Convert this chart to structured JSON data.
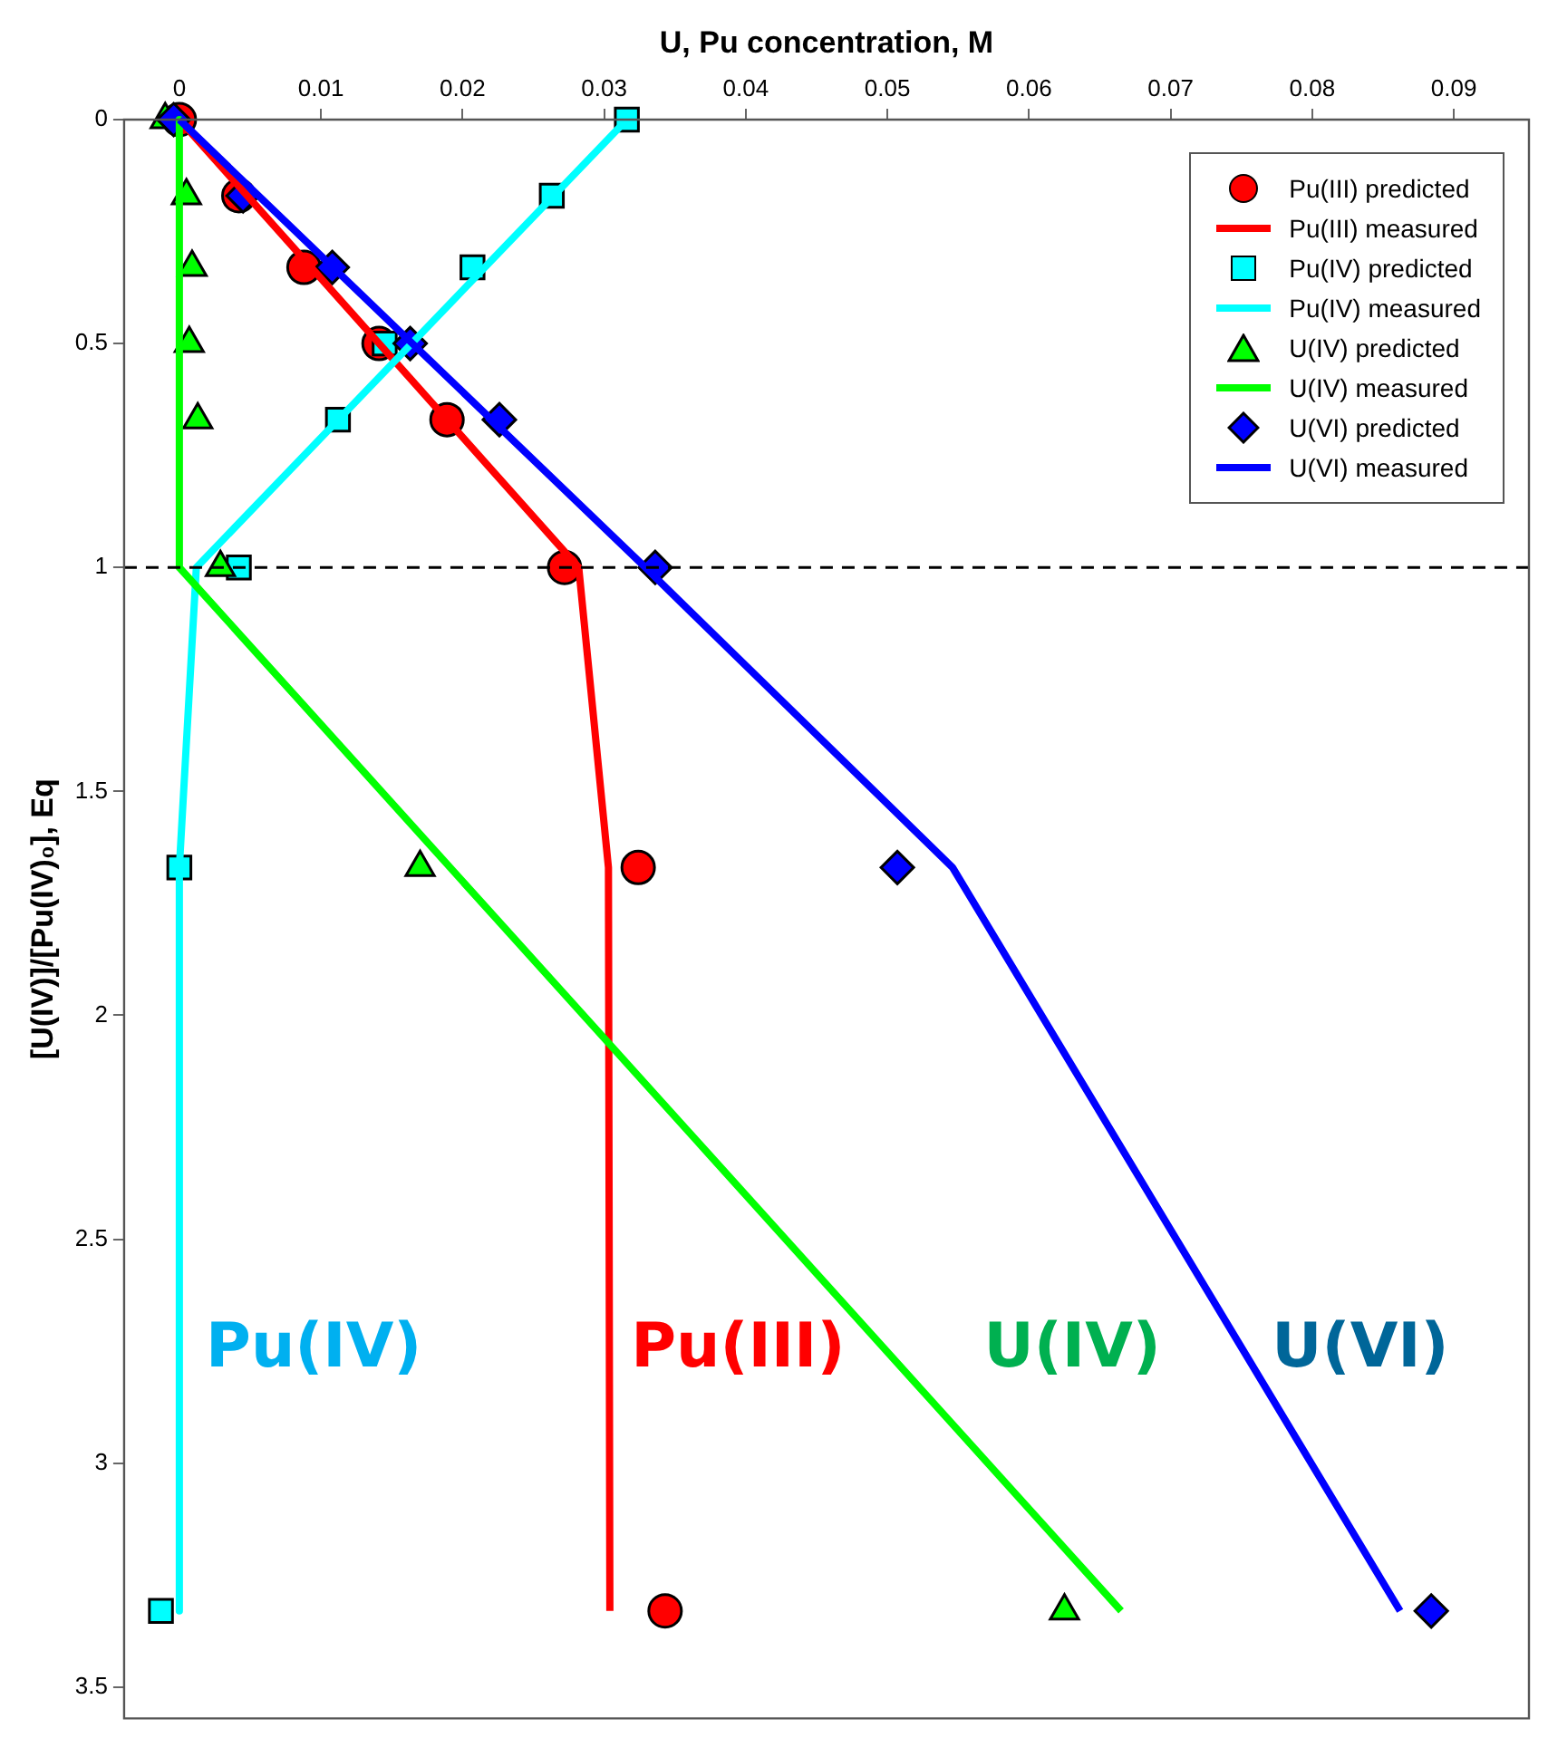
{
  "chart_data": {
    "type": "scatter",
    "xlabel": "U, Pu concentration, M",
    "ylabel": "[U(IV)]/[Pu(IV)₀], Eq",
    "xlim": [
      -0.0039,
      0.0953
    ],
    "xticks": [
      0,
      0.01,
      0.02,
      0.03,
      0.04,
      0.05,
      0.06,
      0.07,
      0.08,
      0.09
    ],
    "ylim": [
      3.57,
      0
    ],
    "yticks": [
      0,
      0.5,
      1,
      1.5,
      2,
      2.5,
      3,
      3.5
    ],
    "grid": false,
    "legend": "top right",
    "series": [
      {
        "name": "Pu(III) predicted",
        "type": "scatter",
        "marker": "circle",
        "color": "#ff0000",
        "x": [
          0,
          0.0042,
          0.0088,
          0.0141,
          0.0189,
          0.0272,
          0.0324,
          0.0343
        ],
        "values": [
          0,
          0.17,
          0.33,
          0.5,
          0.67,
          1,
          1.67,
          3.33
        ]
      },
      {
        "name": "Pu(III) measured",
        "type": "line",
        "marker": "none",
        "color": "#ff0000",
        "x": [
          0,
          0.0282,
          0.0303,
          0.0304
        ],
        "values": [
          0,
          1,
          1.67,
          3.33
        ]
      },
      {
        "name": "Pu(IV) predicted",
        "type": "scatter",
        "marker": "square",
        "color": "#00ffff",
        "x": [
          0.0316,
          0.0263,
          0.0207,
          0.0145,
          0.0112,
          0.0042,
          0,
          -0.0013
        ],
        "values": [
          0,
          0.17,
          0.33,
          0.5,
          0.67,
          1,
          1.67,
          3.33
        ]
      },
      {
        "name": "Pu(IV) measured",
        "type": "line",
        "marker": "none",
        "color": "#00ffff",
        "x": [
          0.0316,
          0.0012,
          0,
          0
        ],
        "values": [
          0,
          1,
          1.67,
          3.33
        ]
      },
      {
        "name": "U(IV) predicted",
        "type": "scatter",
        "marker": "triangle",
        "color": "#00ff00",
        "x": [
          -0.001,
          0.0005,
          0.0009,
          0.0007,
          0.0013,
          0.0029,
          0.017,
          0.0625
        ],
        "values": [
          0,
          0.17,
          0.33,
          0.5,
          0.67,
          1,
          1.67,
          3.33
        ]
      },
      {
        "name": "U(IV) measured",
        "type": "line",
        "marker": "none",
        "color": "#00ff00",
        "x": [
          0,
          0,
          0.0665
        ],
        "values": [
          0,
          1,
          3.33
        ]
      },
      {
        "name": "U(VI) predicted",
        "type": "scatter",
        "marker": "diamond",
        "color": "#0000ff",
        "x": [
          -0.0004,
          0.0045,
          0.0108,
          0.0163,
          0.0226,
          0.0336,
          0.0507,
          0.0884
        ],
        "values": [
          0,
          0.17,
          0.33,
          0.5,
          0.67,
          1,
          1.67,
          3.33
        ]
      },
      {
        "name": "U(VI) measured",
        "type": "line",
        "marker": "none",
        "color": "#0000ff",
        "x": [
          0,
          0.0329,
          0.0546,
          0.0862
        ],
        "values": [
          0,
          1,
          1.67,
          3.33
        ]
      }
    ],
    "ref_lines": [
      {
        "axis": "y",
        "value": 1,
        "color": "#000000",
        "line_style": "dashed"
      }
    ],
    "annotations": [
      "U(VI)",
      "U(IV)",
      "Pu(III)",
      "Pu(IV)"
    ]
  }
}
